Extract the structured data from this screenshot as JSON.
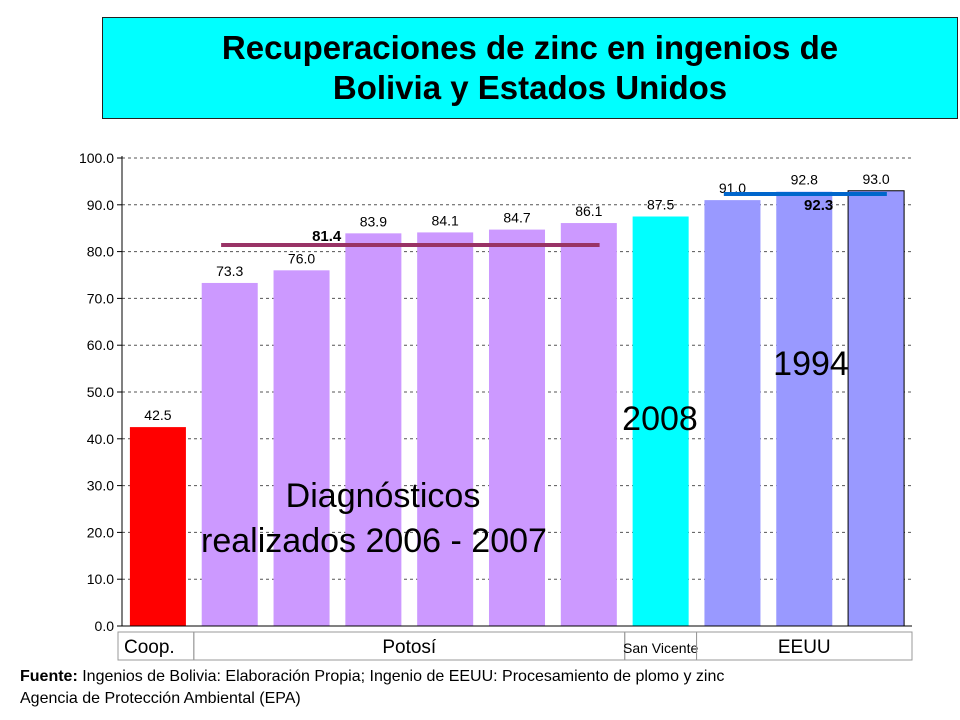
{
  "title": {
    "line1": "Recuperaciones de zinc en ingenios de",
    "line2": "Bolivia y Estados Unidos",
    "background": "#00ffff"
  },
  "chart_data": {
    "type": "bar",
    "ylim": [
      0,
      100
    ],
    "yticks": [
      "0.0",
      "10.0",
      "20.0",
      "30.0",
      "40.0",
      "50.0",
      "60.0",
      "70.0",
      "80.0",
      "90.0",
      "100.0"
    ],
    "grid": true,
    "values": [
      42.5,
      73.3,
      76.0,
      83.9,
      84.1,
      84.7,
      86.1,
      87.5,
      91.0,
      92.8,
      93.0
    ],
    "value_labels": [
      "42.5",
      "73.3",
      "76.0",
      "83.9",
      "84.1",
      "84.7",
      "86.1",
      "87.5",
      "91.0",
      "92.8",
      "93.0"
    ],
    "colors": [
      "#ff0000",
      "#cc99ff",
      "#cc99ff",
      "#cc99ff",
      "#cc99ff",
      "#cc99ff",
      "#cc99ff",
      "#00ffff",
      "#9999ff",
      "#9999ff",
      "#9999ff"
    ],
    "groups": [
      {
        "label": "Coop.",
        "from": 0,
        "to": 0
      },
      {
        "label": "Potosí",
        "from": 1,
        "to": 6
      },
      {
        "label": "San Vicente",
        "from": 7,
        "to": 7
      },
      {
        "label": "EEUU",
        "from": 8,
        "to": 10
      }
    ],
    "average_lines": [
      {
        "value": 81.4,
        "label": "81.4",
        "from": 1,
        "to": 6,
        "color": "#993366"
      },
      {
        "value": 92.3,
        "label": "92.3",
        "from": 8,
        "to": 10,
        "color": "#0066cc"
      }
    ],
    "annotations": [
      {
        "lines": [
          "Diagnósticos",
          "realizados 2006 - 2007"
        ]
      },
      {
        "lines": [
          "2008"
        ]
      },
      {
        "lines": [
          "1994"
        ]
      }
    ]
  },
  "footer": {
    "source_label": "Fuente:",
    "line1": " Ingenios de Bolivia: Elaboración Propia; Ingenio de EEUU: Procesamiento de plomo y zinc",
    "line2": "Agencia de Protección Ambiental (EPA)"
  }
}
